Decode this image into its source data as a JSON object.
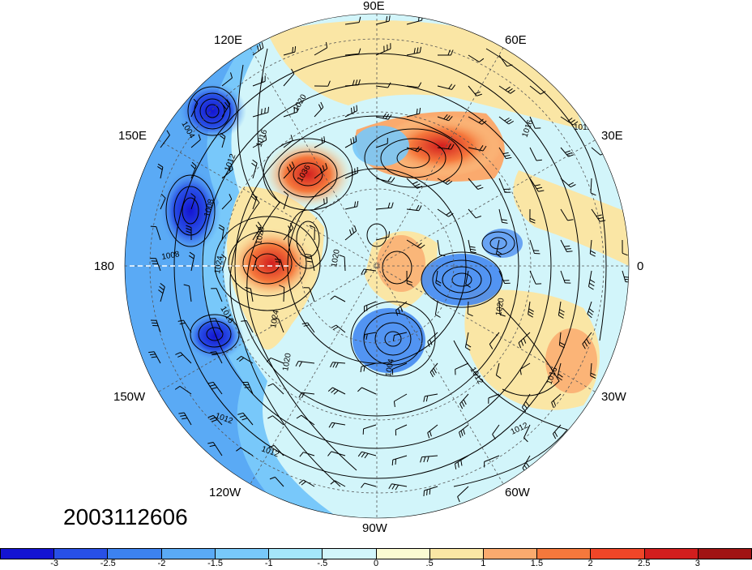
{
  "timestamp": "2003112606",
  "projection": "north-polar-stereographic",
  "longitude_labels": {
    "lon_90e": "90E",
    "lon_60e": "60E",
    "lon_120e": "120E",
    "lon_30e": "30E",
    "lon_150e": "150E",
    "lon_0": "0",
    "lon_180": "180",
    "lon_30w": "30W",
    "lon_150w": "150W",
    "lon_60w": "60W",
    "lon_120w": "120W",
    "lon_90w": "90W"
  },
  "contour_labels": [
    "1004",
    "1008",
    "1012",
    "1016",
    "1020",
    "1024",
    "1028",
    "1036"
  ],
  "colorbar": {
    "colors": [
      "#1414d2",
      "#2850e6",
      "#3c82f0",
      "#5aaaf5",
      "#78c8fa",
      "#a5e6fa",
      "#d2f5fa",
      "#fafad2",
      "#fae6a5",
      "#faaa6e",
      "#f5783c",
      "#f04628",
      "#d21e1e",
      "#a01414"
    ],
    "tick_labels": [
      "-3",
      "-2.5",
      "-2",
      "-1.5",
      "-1",
      "-.5",
      "0",
      ".5",
      "1",
      "1.5",
      "2",
      "2.5",
      "3"
    ]
  },
  "anomaly_regions": [
    {
      "name": "negative anomaly near 140E",
      "value": -3
    },
    {
      "name": "negative anomaly near 165E",
      "value": -3
    },
    {
      "name": "negative anomaly near 155W",
      "value": -3
    },
    {
      "name": "positive anomaly near 170E",
      "value": 3
    },
    {
      "name": "positive anomaly near 130E",
      "value": 2.5
    },
    {
      "name": "positive anomaly near 60E",
      "value": 2.5
    },
    {
      "name": "negative anomaly near 10W",
      "value": -2
    },
    {
      "name": "negative anomaly near 85W",
      "value": -2.5
    },
    {
      "name": "positive anomaly near 35W",
      "value": 1.5
    }
  ]
}
